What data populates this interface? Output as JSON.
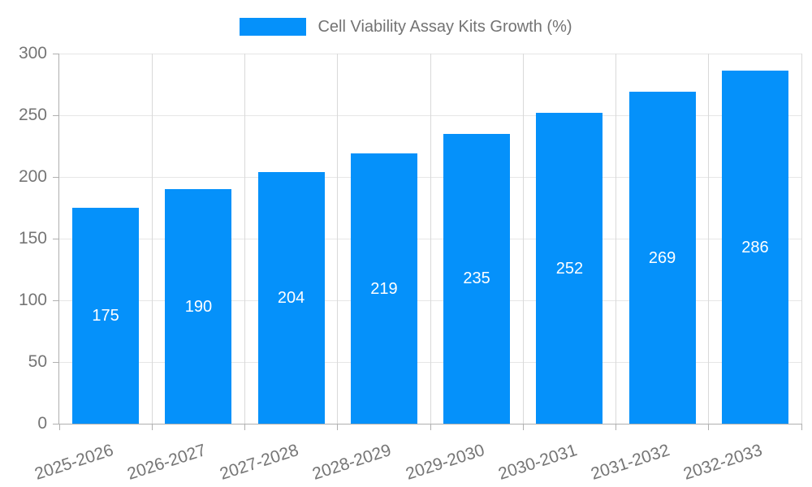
{
  "chart_data": {
    "type": "bar",
    "title": "",
    "xlabel": "",
    "ylabel": "",
    "legend": {
      "position": "top-center",
      "label": "Cell Viability Assay Kits Growth (%)"
    },
    "categories": [
      "2025-2026",
      "2026-2027",
      "2027-2028",
      "2028-2029",
      "2029-2030",
      "2030-2031",
      "2031-2032",
      "2032-2033"
    ],
    "values": [
      175,
      190,
      204,
      219,
      235,
      252,
      269,
      286
    ],
    "value_labels": [
      "175",
      "190",
      "204",
      "219",
      "235",
      "252",
      "269",
      "286"
    ],
    "ylim": [
      0,
      300
    ],
    "ytick_interval": 50,
    "yticks": [
      0,
      50,
      100,
      150,
      200,
      250,
      300
    ],
    "grid": true,
    "colors": {
      "bar": "#0591fa",
      "value_label": "#ffffff",
      "axis_text": "#757575",
      "legend_text": "#737373",
      "grid_horizontal": "#e6e6e6",
      "grid_vertical": "#d9d9d9",
      "axis_line": "#b0b0b0",
      "background": "#ffffff"
    }
  }
}
